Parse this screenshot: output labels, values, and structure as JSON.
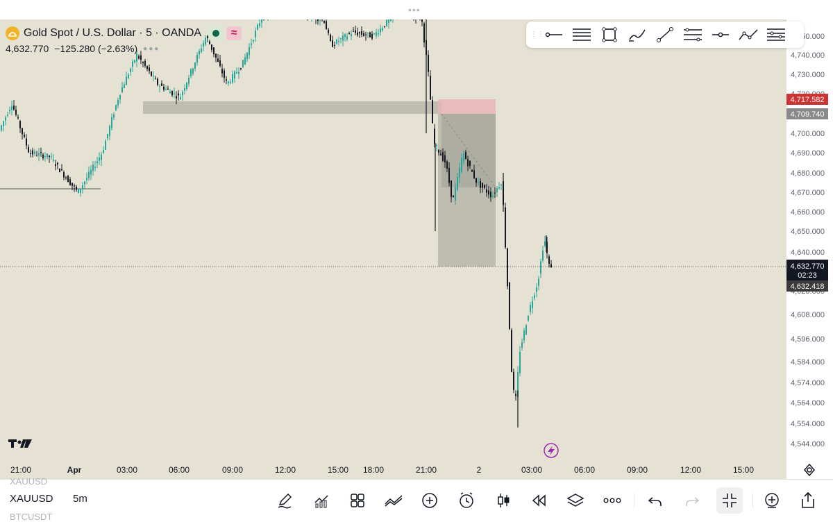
{
  "legend": {
    "symbol_title": "Gold Spot / U.S. Dollar · 5 · OANDA",
    "last_price": "4,632.770",
    "change": "−125.280 (−2.63%)"
  },
  "price_axis": {
    "labels": [
      "4,750.000",
      "4,740.000",
      "4,730.000",
      "4,720.000",
      "4,710.000",
      "4,700.000",
      "4,690.000",
      "4,680.000",
      "4,670.000",
      "4,660.000",
      "4,650.000",
      "4,640.000",
      "4,620.000",
      "4,608.000",
      "4,596.000",
      "4,584.000",
      "4,574.000",
      "4,564.000",
      "4,554.000",
      "4,544.000"
    ],
    "sl_label": "4,717.582",
    "entry_label": "4,709.740",
    "current_label": "4,632.770",
    "countdown": "02:23",
    "tp_label": "4,632.418"
  },
  "time_axis": {
    "labels": [
      "21:00",
      "Apr",
      "03:00",
      "06:00",
      "09:00",
      "12:00",
      "15:00",
      "18:00",
      "21:00",
      "2",
      "03:00",
      "06:00",
      "09:00",
      "12:00",
      "15:00"
    ]
  },
  "bottom": {
    "symbol_prev": "XAUUSD",
    "symbol": "XAUUSD",
    "symbol_next": "BTCUSDT",
    "timeframe": "5m"
  },
  "drawing_tools": [
    "trend-ray-icon",
    "horizontal-lines-icon",
    "rectangle-icon",
    "brush-icon",
    "trend-line-icon",
    "fib-retracement-icon",
    "horizontal-ray-icon",
    "path-icon",
    "fib-extension-icon"
  ],
  "bottom_tools": [
    "pencil-icon",
    "indicators-icon",
    "layout-icon",
    "compare-icon",
    "add-icon",
    "alert-icon",
    "candles-icon",
    "replay-icon",
    "layers-icon",
    "more-icon",
    "undo-icon",
    "redo-icon",
    "minimize-icon",
    "add-symbol-icon",
    "share-icon"
  ],
  "colors": {
    "chart_bg": "#e5e2d3",
    "up_candle": "#26a69a",
    "down_candle": "#131722",
    "sl_zone": "#e8b5b5",
    "sl_tag": "#cc3333",
    "entry_tag": "#8a8a8a",
    "current_tag": "#131722"
  },
  "chart_data": {
    "type": "candlestick",
    "symbol": "XAUUSD",
    "y_ticks": [
      4750,
      4740,
      4730,
      4720,
      4710,
      4700,
      4690,
      4680,
      4670,
      4660,
      4650,
      4640,
      4620,
      4608,
      4596,
      4584,
      4574,
      4564,
      4554,
      4544
    ],
    "x_ticks": [
      "21:00",
      "Apr",
      "03:00",
      "06:00",
      "09:00",
      "12:00",
      "15:00",
      "18:00",
      "21:00",
      "2",
      "03:00",
      "06:00",
      "09:00",
      "12:00",
      "15:00"
    ],
    "price_series": [
      {
        "t": "21:00",
        "p": 4700
      },
      {
        "t": "Apr",
        "p": 4672
      },
      {
        "t": "03:00",
        "p": 4715
      },
      {
        "t": "06:00",
        "p": 4720
      },
      {
        "t": "09:00",
        "p": 4745
      },
      {
        "t": "12:00",
        "p": 4758
      },
      {
        "t": "15:00",
        "p": 4750
      },
      {
        "t": "18:00",
        "p": 4752
      },
      {
        "t": "21:00",
        "p": 4705
      },
      {
        "t": "2",
        "p": 4668
      },
      {
        "t": "03:00",
        "p": 4570
      },
      {
        "t": "03:00",
        "p": 4560
      },
      {
        "t": "03:00",
        "p": 4633
      }
    ],
    "last_price": 4632.77,
    "position": {
      "stop_loss": 4717.582,
      "entry": 4709.74,
      "take_profit": 4632.418
    }
  }
}
